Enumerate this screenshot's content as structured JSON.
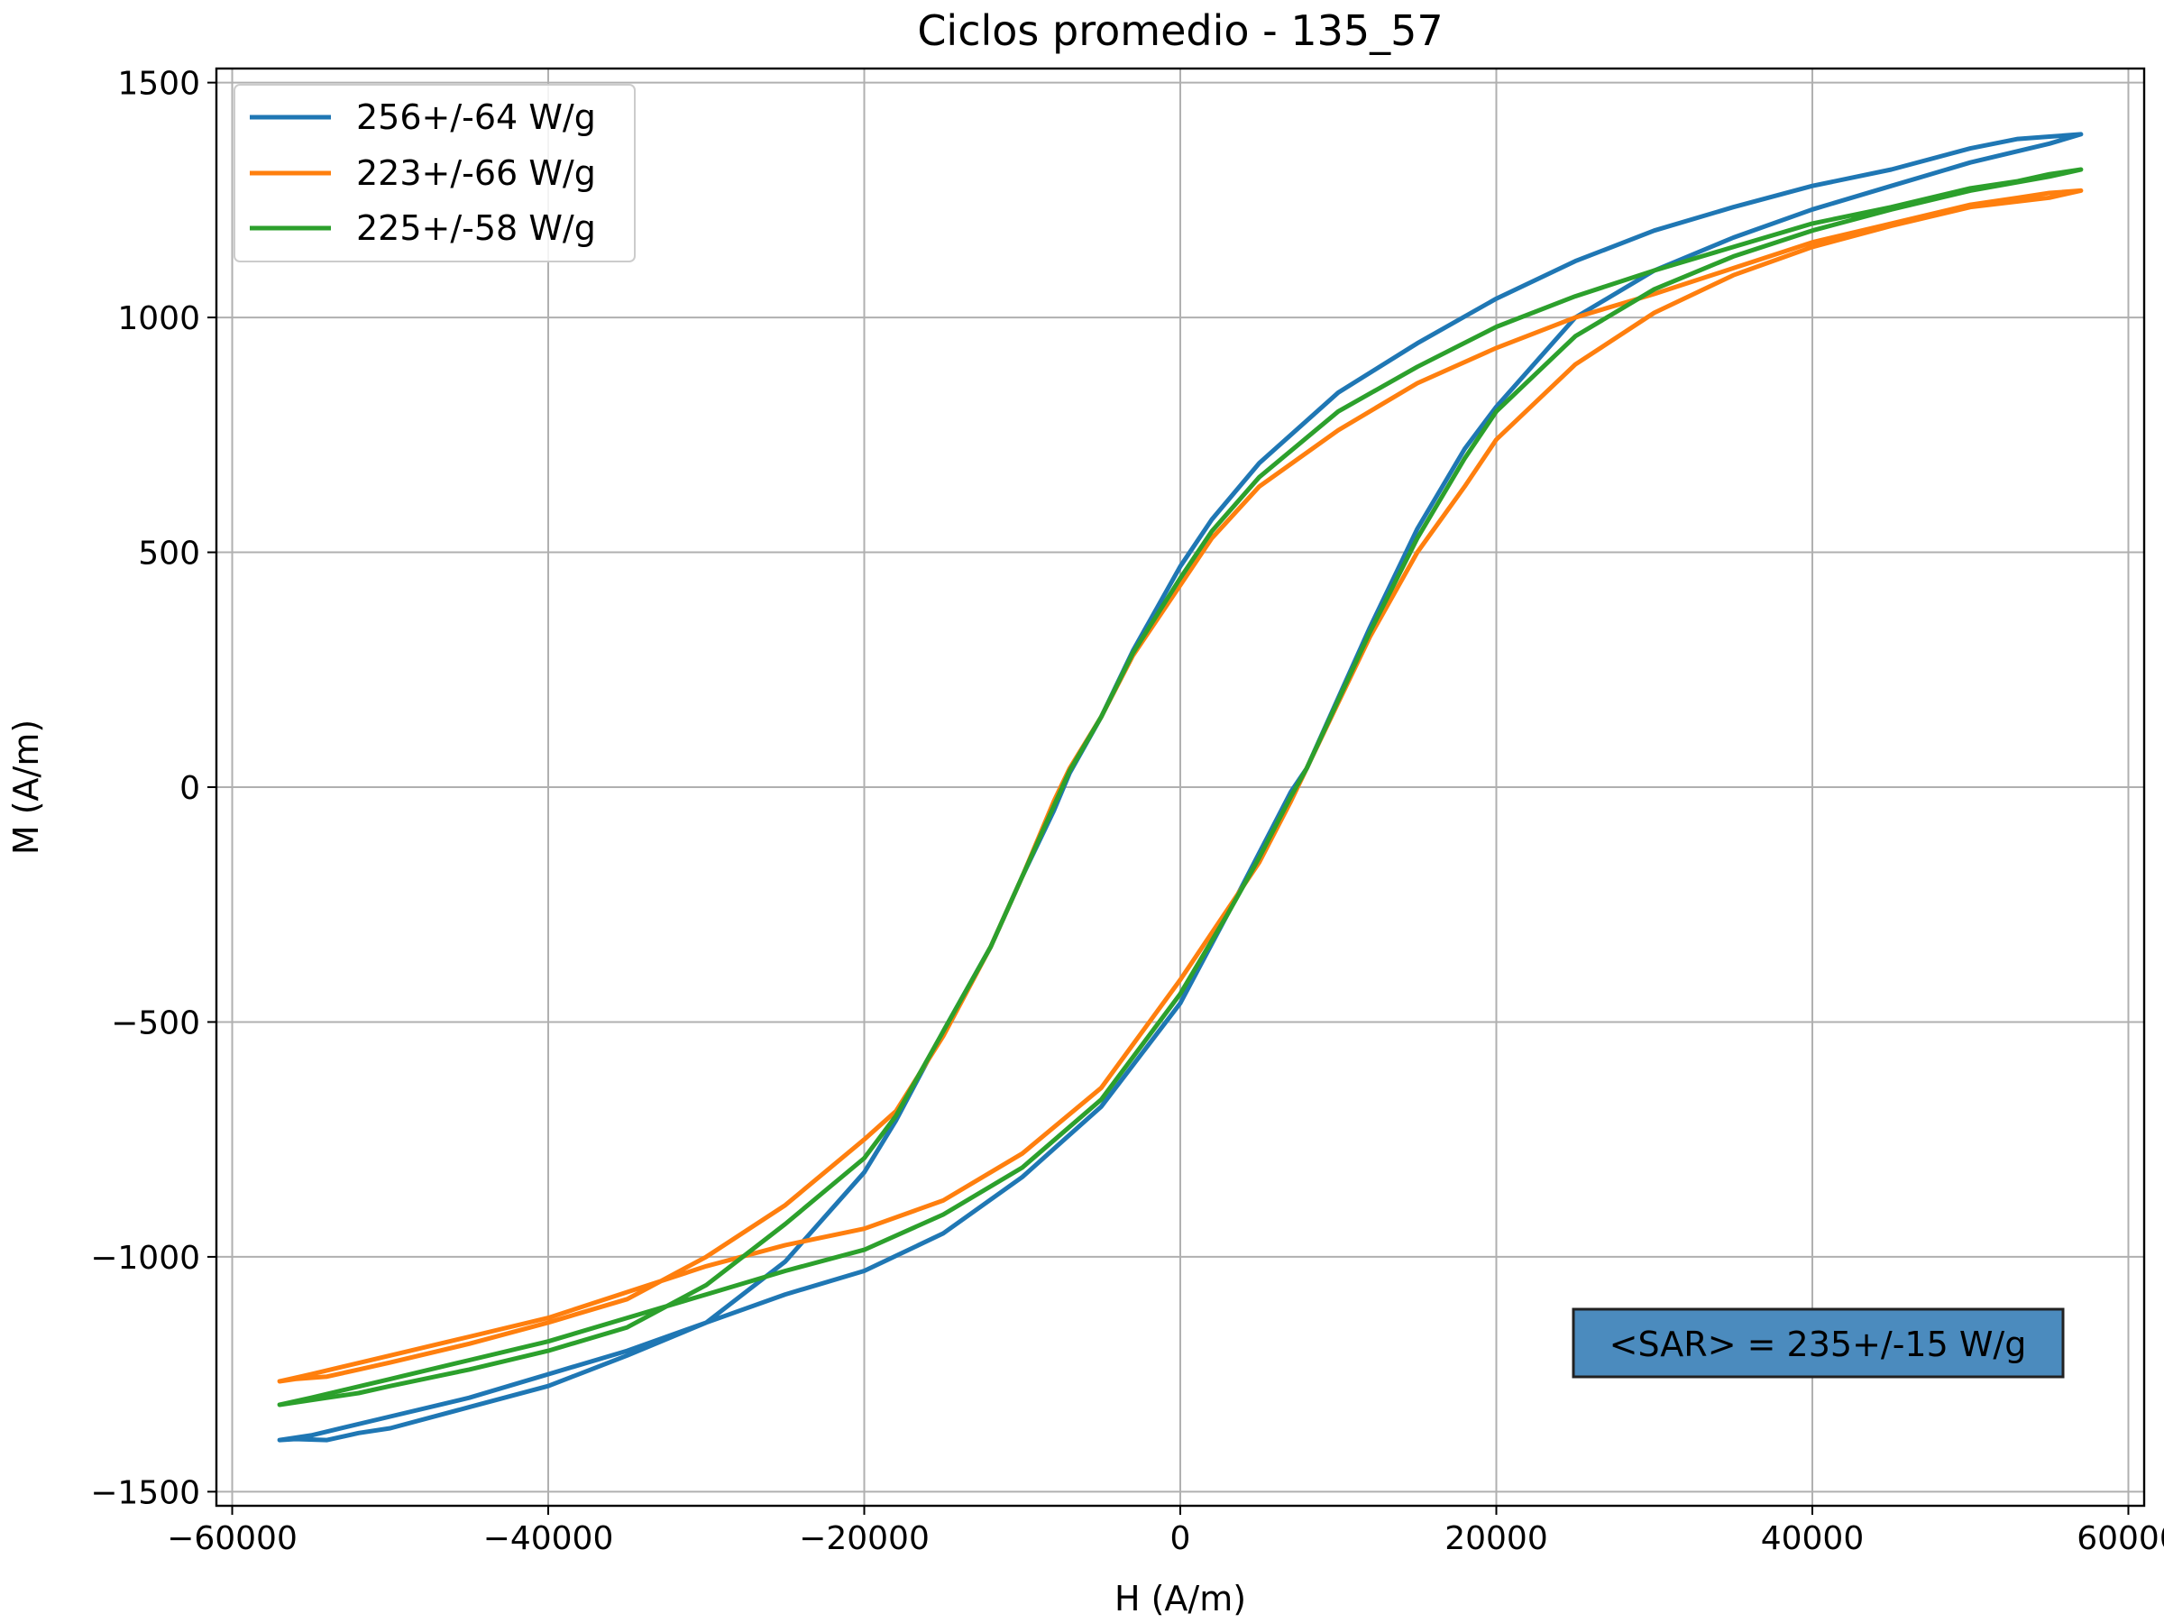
{
  "chart_data": {
    "type": "line",
    "title": "Ciclos promedio - 135_57",
    "xlabel": "H (A/m)",
    "ylabel": "M (A/m)",
    "xlim": [
      -61000,
      61000
    ],
    "ylim": [
      -1530,
      1530
    ],
    "xticks": [
      -60000,
      -40000,
      -20000,
      0,
      20000,
      40000,
      60000
    ],
    "xtick_labels": [
      "−60000",
      "−40000",
      "−20000",
      "0",
      "20000",
      "40000",
      "60000"
    ],
    "yticks": [
      1500,
      1000,
      500,
      0,
      -500,
      -1000,
      -1500
    ],
    "ytick_labels": [
      "1500",
      "1000",
      "500",
      "0",
      "−500",
      "−1000",
      "−1500"
    ],
    "grid": true,
    "legend_position": "top-left",
    "series": [
      {
        "name": "256+/-64 W/g",
        "color": "#1f77b4",
        "upper_branch": [
          [
            57000,
            1390
          ],
          [
            55000,
            1385
          ],
          [
            53000,
            1380
          ],
          [
            50000,
            1360
          ],
          [
            45000,
            1315
          ],
          [
            40000,
            1280
          ],
          [
            35000,
            1235
          ],
          [
            30000,
            1185
          ],
          [
            25000,
            1120
          ],
          [
            20000,
            1040
          ],
          [
            15000,
            945
          ],
          [
            10000,
            840
          ],
          [
            5000,
            690
          ],
          [
            2000,
            570
          ],
          [
            0,
            470
          ],
          [
            -3000,
            290
          ],
          [
            -5000,
            150
          ],
          [
            -7000,
            30
          ],
          [
            -8000,
            -50
          ],
          [
            -10000,
            -190
          ],
          [
            -12000,
            -340
          ],
          [
            -15000,
            -520
          ],
          [
            -18000,
            -710
          ],
          [
            -20000,
            -820
          ],
          [
            -25000,
            -1010
          ],
          [
            -30000,
            -1140
          ],
          [
            -35000,
            -1210
          ],
          [
            -40000,
            -1275
          ],
          [
            -45000,
            -1320
          ],
          [
            -50000,
            -1365
          ],
          [
            -52000,
            -1375
          ],
          [
            -54000,
            -1390
          ],
          [
            -56000,
            -1388
          ],
          [
            -57000,
            -1390
          ]
        ],
        "lower_branch": [
          [
            -57000,
            -1390
          ],
          [
            -55000,
            -1380
          ],
          [
            -50000,
            -1340
          ],
          [
            -45000,
            -1300
          ],
          [
            -40000,
            -1250
          ],
          [
            -35000,
            -1200
          ],
          [
            -30000,
            -1140
          ],
          [
            -25000,
            -1080
          ],
          [
            -20000,
            -1030
          ],
          [
            -15000,
            -950
          ],
          [
            -10000,
            -830
          ],
          [
            -5000,
            -680
          ],
          [
            0,
            -460
          ],
          [
            3000,
            -270
          ],
          [
            5000,
            -140
          ],
          [
            7000,
            -10
          ],
          [
            8000,
            40
          ],
          [
            10000,
            190
          ],
          [
            12000,
            340
          ],
          [
            15000,
            550
          ],
          [
            18000,
            720
          ],
          [
            20000,
            810
          ],
          [
            25000,
            1000
          ],
          [
            30000,
            1100
          ],
          [
            35000,
            1170
          ],
          [
            40000,
            1230
          ],
          [
            45000,
            1280
          ],
          [
            50000,
            1330
          ],
          [
            55000,
            1370
          ],
          [
            57000,
            1390
          ]
        ]
      },
      {
        "name": "223+/-66 W/g",
        "color": "#ff7f0e",
        "upper_branch": [
          [
            57000,
            1270
          ],
          [
            55000,
            1265
          ],
          [
            53000,
            1255
          ],
          [
            50000,
            1240
          ],
          [
            45000,
            1200
          ],
          [
            40000,
            1160
          ],
          [
            35000,
            1105
          ],
          [
            30000,
            1050
          ],
          [
            25000,
            1000
          ],
          [
            20000,
            935
          ],
          [
            15000,
            860
          ],
          [
            10000,
            760
          ],
          [
            5000,
            640
          ],
          [
            2000,
            530
          ],
          [
            0,
            430
          ],
          [
            -3000,
            280
          ],
          [
            -5000,
            150
          ],
          [
            -7000,
            40
          ],
          [
            -8000,
            -30
          ],
          [
            -10000,
            -190
          ],
          [
            -12000,
            -340
          ],
          [
            -15000,
            -530
          ],
          [
            -18000,
            -690
          ],
          [
            -20000,
            -750
          ],
          [
            -25000,
            -890
          ],
          [
            -30000,
            -1000
          ],
          [
            -35000,
            -1090
          ],
          [
            -40000,
            -1140
          ],
          [
            -45000,
            -1185
          ],
          [
            -50000,
            -1225
          ],
          [
            -52000,
            -1240
          ],
          [
            -54000,
            -1255
          ],
          [
            -56000,
            -1260
          ],
          [
            -57000,
            -1265
          ]
        ],
        "lower_branch": [
          [
            -57000,
            -1265
          ],
          [
            -55000,
            -1250
          ],
          [
            -50000,
            -1210
          ],
          [
            -45000,
            -1170
          ],
          [
            -40000,
            -1130
          ],
          [
            -35000,
            -1075
          ],
          [
            -30000,
            -1020
          ],
          [
            -25000,
            -975
          ],
          [
            -20000,
            -940
          ],
          [
            -15000,
            -880
          ],
          [
            -10000,
            -780
          ],
          [
            -5000,
            -640
          ],
          [
            0,
            -410
          ],
          [
            3000,
            -260
          ],
          [
            5000,
            -160
          ],
          [
            7000,
            -30
          ],
          [
            8000,
            40
          ],
          [
            10000,
            180
          ],
          [
            12000,
            320
          ],
          [
            15000,
            500
          ],
          [
            18000,
            640
          ],
          [
            20000,
            740
          ],
          [
            25000,
            900
          ],
          [
            30000,
            1010
          ],
          [
            35000,
            1090
          ],
          [
            40000,
            1150
          ],
          [
            45000,
            1195
          ],
          [
            50000,
            1235
          ],
          [
            55000,
            1255
          ],
          [
            57000,
            1270
          ]
        ]
      },
      {
        "name": "225+/-58 W/g",
        "color": "#2ca02c",
        "upper_branch": [
          [
            57000,
            1315
          ],
          [
            55000,
            1305
          ],
          [
            53000,
            1290
          ],
          [
            50000,
            1275
          ],
          [
            45000,
            1235
          ],
          [
            40000,
            1200
          ],
          [
            35000,
            1150
          ],
          [
            30000,
            1100
          ],
          [
            25000,
            1045
          ],
          [
            20000,
            980
          ],
          [
            15000,
            895
          ],
          [
            10000,
            800
          ],
          [
            5000,
            660
          ],
          [
            2000,
            545
          ],
          [
            0,
            445
          ],
          [
            -3000,
            285
          ],
          [
            -5000,
            150
          ],
          [
            -7000,
            35
          ],
          [
            -8000,
            -40
          ],
          [
            -10000,
            -190
          ],
          [
            -12000,
            -340
          ],
          [
            -15000,
            -520
          ],
          [
            -18000,
            -700
          ],
          [
            -20000,
            -790
          ],
          [
            -25000,
            -930
          ],
          [
            -30000,
            -1060
          ],
          [
            -35000,
            -1150
          ],
          [
            -40000,
            -1200
          ],
          [
            -45000,
            -1240
          ],
          [
            -50000,
            -1275
          ],
          [
            -52000,
            -1290
          ],
          [
            -54000,
            -1300
          ],
          [
            -56000,
            -1310
          ],
          [
            -57000,
            -1315
          ]
        ],
        "lower_branch": [
          [
            -57000,
            -1315
          ],
          [
            -55000,
            -1300
          ],
          [
            -50000,
            -1260
          ],
          [
            -45000,
            -1220
          ],
          [
            -40000,
            -1180
          ],
          [
            -35000,
            -1130
          ],
          [
            -30000,
            -1080
          ],
          [
            -25000,
            -1030
          ],
          [
            -20000,
            -985
          ],
          [
            -15000,
            -910
          ],
          [
            -10000,
            -810
          ],
          [
            -5000,
            -665
          ],
          [
            0,
            -440
          ],
          [
            3000,
            -270
          ],
          [
            5000,
            -150
          ],
          [
            7000,
            -20
          ],
          [
            8000,
            40
          ],
          [
            10000,
            185
          ],
          [
            12000,
            330
          ],
          [
            15000,
            530
          ],
          [
            18000,
            700
          ],
          [
            20000,
            800
          ],
          [
            25000,
            960
          ],
          [
            30000,
            1060
          ],
          [
            35000,
            1130
          ],
          [
            40000,
            1185
          ],
          [
            45000,
            1230
          ],
          [
            50000,
            1270
          ],
          [
            55000,
            1300
          ],
          [
            57000,
            1315
          ]
        ]
      }
    ],
    "annotation": {
      "text": "<SAR> = 235+/-15 W/g",
      "background": "#4b8bbe",
      "border": "#222222"
    }
  }
}
